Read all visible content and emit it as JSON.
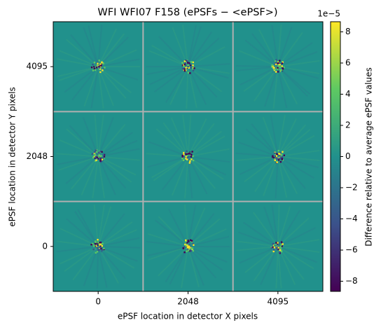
{
  "chart_data": {
    "type": "image_grid",
    "title": "WFI WFI07 F158 (ePSFs − <ePSF>)",
    "x_label": "ePSF location in detector X pixels",
    "y_label": "ePSF location in detector Y pixels",
    "x_categories": [
      "0",
      "2048",
      "4095"
    ],
    "y_categories": [
      "4095",
      "2048",
      "0"
    ],
    "grid": true,
    "grid_color": "#b0b0b0",
    "background_color": "#21918c",
    "colorbar": {
      "label": "Difference relative to average ePSF values",
      "offset_label": "1e−5",
      "lim": [
        -8.65,
        8.65
      ],
      "ticks": [
        {
          "value": -8,
          "label": "−8"
        },
        {
          "value": -6,
          "label": "−6"
        },
        {
          "value": -4,
          "label": "−4"
        },
        {
          "value": -2,
          "label": "−2"
        },
        0,
        2,
        4,
        6,
        8
      ],
      "colormap": [
        "#440154",
        "#3b528b",
        "#21918c",
        "#5ec962",
        "#fde725"
      ]
    }
  }
}
